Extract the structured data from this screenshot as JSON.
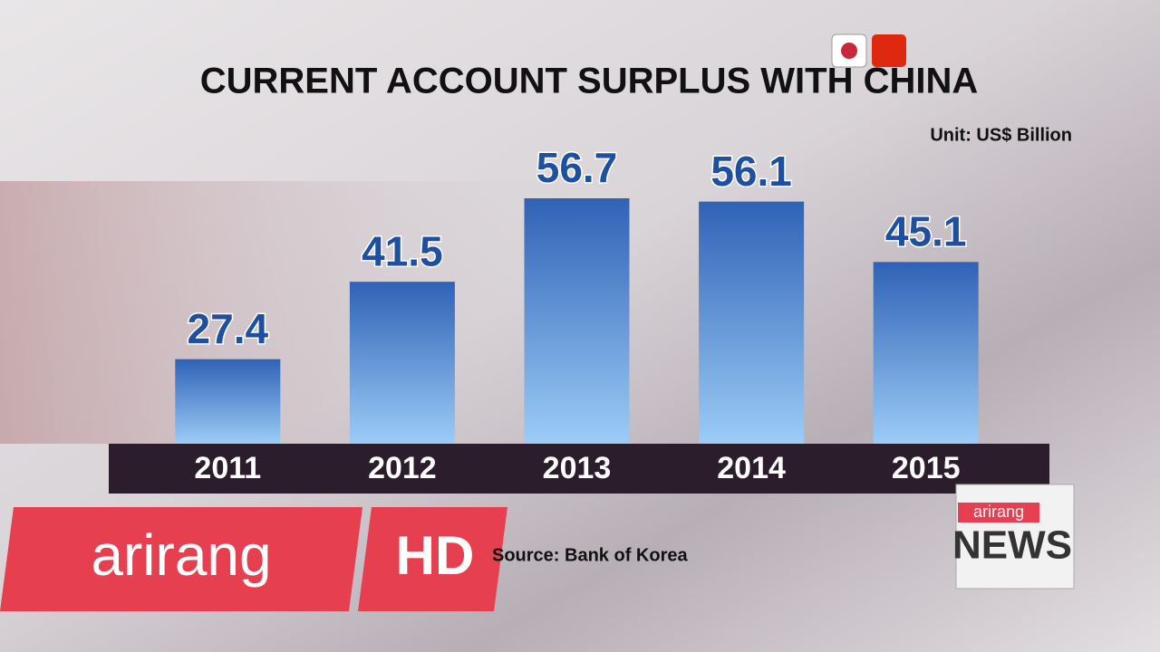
{
  "chart_data": {
    "type": "bar",
    "title": "CURRENT ACCOUNT SURPLUS WITH CHINA",
    "unit": "Unit: US$ Billion",
    "categories": [
      "2011",
      "2012",
      "2013",
      "2014",
      "2015"
    ],
    "values": [
      27.4,
      41.5,
      56.7,
      56.1,
      45.1
    ],
    "color": "#2f62b6",
    "ylim": [
      12,
      60
    ],
    "source": "Source: Bank of Korea"
  },
  "overlay": {
    "logo": "arirang",
    "hd": "HD",
    "news_brand": "arirang",
    "news": "NEWS"
  }
}
